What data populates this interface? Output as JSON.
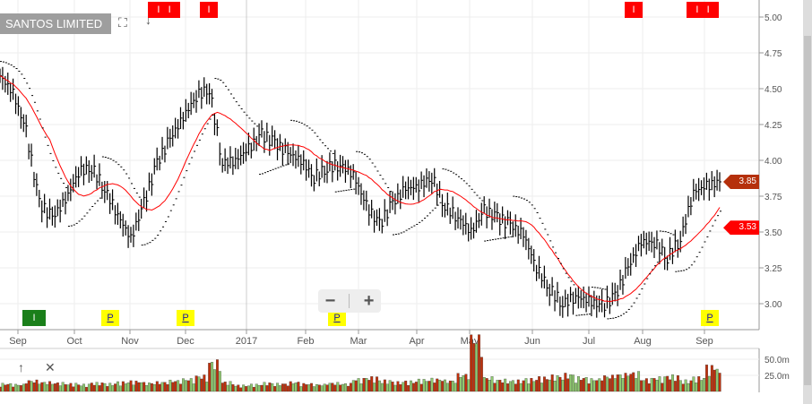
{
  "header": {
    "title": "SANTOS LIMITED",
    "fullscreen_icon": "expand-icon",
    "download_icon": "arrow-down-icon"
  },
  "volume_tools": {
    "up_icon": "arrow-up-icon",
    "close_icon": "close-icon"
  },
  "zoom": {
    "minus": "−",
    "plus": "+"
  },
  "markers": {
    "top": [
      {
        "label": "I",
        "color": "#ff0000"
      },
      {
        "label": "I",
        "color": "#ff0000"
      },
      {
        "label": "I",
        "color": "#ff0000"
      },
      {
        "label": "I",
        "color": "#ff0000"
      },
      {
        "label": "I",
        "color": "#ff0000"
      },
      {
        "label": "I",
        "color": "#ff0000"
      }
    ],
    "bottom": [
      {
        "label": "I",
        "color": "#1a7f1a"
      },
      {
        "label": "P",
        "color": "#ffff00"
      },
      {
        "label": "P",
        "color": "#ffff00"
      },
      {
        "label": "P",
        "color": "#ffff00"
      },
      {
        "label": "P",
        "color": "#ffff00"
      }
    ]
  },
  "price_tags": {
    "last": {
      "value": "3.85",
      "color": "#b5300b"
    },
    "ma": {
      "value": "3.53",
      "color": "#ff0000"
    }
  },
  "chart_data": {
    "type": "ohlc",
    "y_ticks": [
      "5.00",
      "4.75",
      "4.50",
      "4.25",
      "4.00",
      "3.75",
      "3.50",
      "3.25",
      "3.00"
    ],
    "ylim": [
      2.85,
      5.06
    ],
    "x_ticks": [
      "Sep",
      "Oct",
      "Nov",
      "Dec",
      "2017",
      "Feb",
      "Mar",
      "Apr",
      "May",
      "Jun",
      "Jul",
      "Aug",
      "Sep"
    ],
    "volume_ticks": [
      "50.0m",
      "25.0m"
    ],
    "grid": true,
    "series": [
      {
        "type": "price",
        "dates": [
          "2016-08-22",
          "2016-08-29",
          "2016-09-05",
          "2016-09-12",
          "2016-09-19",
          "2016-09-26",
          "2016-10-03",
          "2016-10-10",
          "2016-10-17",
          "2016-10-24",
          "2016-10-31",
          "2016-11-07",
          "2016-11-14",
          "2016-11-21",
          "2016-11-28",
          "2016-12-05",
          "2016-12-12",
          "2016-12-19",
          "2016-12-26",
          "2017-01-02",
          "2017-01-09",
          "2017-01-16",
          "2017-01-23",
          "2017-01-30",
          "2017-02-06",
          "2017-02-13",
          "2017-02-20",
          "2017-02-27",
          "2017-03-06",
          "2017-03-13",
          "2017-03-20",
          "2017-03-27",
          "2017-04-03",
          "2017-04-10",
          "2017-04-17",
          "2017-04-24",
          "2017-05-01",
          "2017-05-08",
          "2017-05-15",
          "2017-05-22",
          "2017-05-29",
          "2017-06-05",
          "2017-06-12",
          "2017-06-19",
          "2017-06-26",
          "2017-07-03",
          "2017-07-10",
          "2017-07-17",
          "2017-07-24",
          "2017-07-31",
          "2017-08-07",
          "2017-08-14",
          "2017-08-21",
          "2017-08-28",
          "2017-09-04",
          "2017-09-11"
        ],
        "close": [
          4.59,
          4.47,
          4.2,
          3.7,
          3.6,
          3.72,
          3.92,
          3.95,
          3.8,
          3.62,
          3.45,
          3.7,
          3.98,
          4.15,
          4.3,
          4.45,
          4.5,
          3.98,
          4.0,
          4.08,
          4.18,
          4.12,
          4.05,
          4.0,
          3.88,
          3.95,
          3.97,
          3.9,
          3.68,
          3.55,
          3.7,
          3.8,
          3.82,
          3.88,
          3.68,
          3.6,
          3.5,
          3.65,
          3.6,
          3.55,
          3.48,
          3.25,
          3.1,
          3.0,
          3.05,
          3.02,
          2.98,
          3.05,
          3.25,
          3.43,
          3.43,
          3.32,
          3.45,
          3.78,
          3.82,
          3.85
        ],
        "volume_m": [
          10,
          9,
          14,
          12,
          11,
          10,
          9,
          11,
          10,
          12,
          13,
          11,
          12,
          14,
          16,
          20,
          38,
          12,
          8,
          9,
          11,
          10,
          12,
          10,
          9,
          11,
          10,
          16,
          18,
          14,
          12,
          13,
          15,
          16,
          14,
          22,
          70,
          18,
          15,
          14,
          16,
          18,
          20,
          22,
          18,
          16,
          20,
          22,
          24,
          16,
          18,
          20,
          14,
          18,
          32,
          22
        ]
      }
    ]
  }
}
